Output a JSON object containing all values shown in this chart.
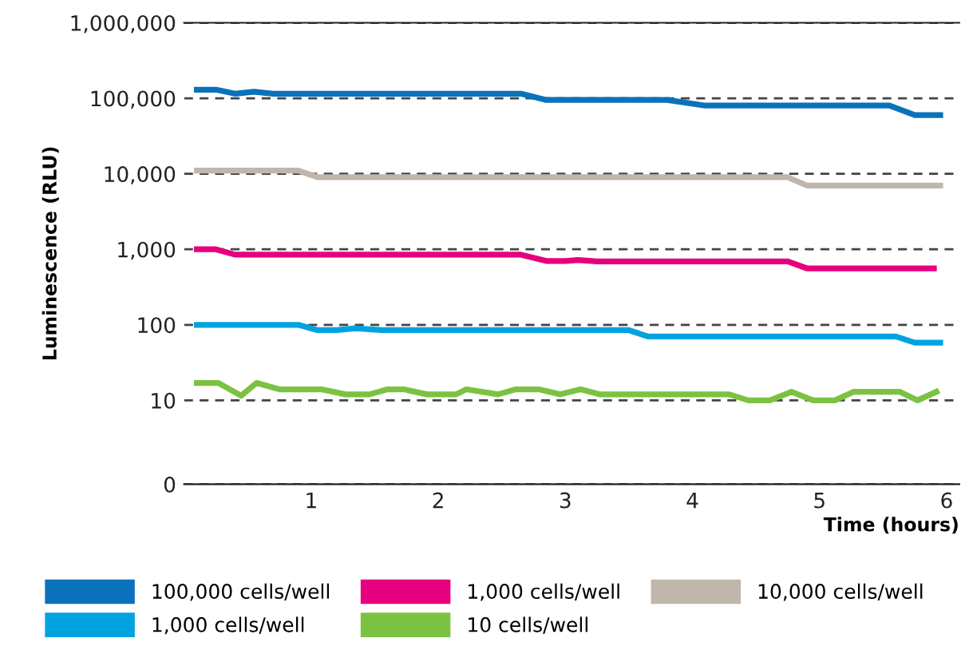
{
  "chart_data": {
    "type": "line",
    "xlabel": "Time (hours)",
    "ylabel": "Luminescence (RLU)",
    "log": "y",
    "xlim": [
      0,
      6.1
    ],
    "xticks": [
      1,
      2,
      3,
      4,
      5,
      6
    ],
    "ylim": [
      0,
      1000000
    ],
    "yticks": [
      0,
      {
        "value": 10,
        "label": "10"
      },
      {
        "value": 100,
        "label": "100"
      },
      {
        "value": 1000,
        "label": "1,000"
      },
      {
        "value": 10000,
        "label": "10,000"
      },
      {
        "value": 100000,
        "label": "100,000"
      },
      {
        "value": 1000000,
        "label": "1,000,000"
      }
    ],
    "grid": "y",
    "legend": "bottom",
    "line_style": "solid",
    "marker": "none",
    "series": [
      {
        "name": "100,000 cells/well",
        "color": "#0a72ba",
        "x": [
          0.1,
          0.25,
          0.4,
          0.55,
          0.7,
          2.65,
          2.85,
          3.8,
          4.1,
          5.55,
          5.75,
          5.95
        ],
        "values": [
          130000,
          130000,
          115000,
          122000,
          115000,
          115000,
          95000,
          95000,
          80000,
          80000,
          60000,
          60000
        ]
      },
      {
        "name": "1,000 cells/well",
        "color": "#00a3e0",
        "x": [
          0.1,
          0.9,
          1.05,
          1.2,
          1.35,
          1.55,
          3.5,
          3.65,
          5.6,
          5.75,
          5.95
        ],
        "values": [
          100,
          100,
          85,
          85,
          90,
          85,
          85,
          70,
          70,
          58,
          58
        ]
      },
      {
        "name": "1,000 cells/well",
        "color": "#e6007e",
        "x": [
          0.1,
          0.25,
          0.4,
          2.65,
          2.85,
          3.0,
          3.1,
          3.25,
          4.75,
          4.9,
          5.9
        ],
        "values": [
          1000,
          1000,
          850,
          850,
          700,
          700,
          720,
          690,
          690,
          560,
          560
        ]
      },
      {
        "name": "10 cells/well",
        "color": "#7cc242",
        "x": [
          0.1,
          0.27,
          0.45,
          0.57,
          0.75,
          1.08,
          1.27,
          1.46,
          1.6,
          1.73,
          1.91,
          2.14,
          2.22,
          2.47,
          2.61,
          2.79,
          2.96,
          3.12,
          3.27,
          4.29,
          4.44,
          4.61,
          4.78,
          4.95,
          5.12,
          5.27,
          5.63,
          5.77,
          5.92
        ],
        "values": [
          17,
          17,
          11.5,
          17,
          14,
          14,
          12,
          12,
          14,
          14,
          12,
          12,
          14,
          12,
          14,
          14,
          12,
          14,
          12,
          12,
          10,
          10,
          13,
          10,
          10,
          13,
          13,
          10,
          13
        ]
      },
      {
        "name": "10,000 cells/well",
        "color": "#bfb6ac",
        "x": [
          0.1,
          0.9,
          1.05,
          4.75,
          4.9,
          5.95
        ],
        "values": [
          11000,
          11000,
          9000,
          9000,
          7000,
          7000
        ]
      }
    ]
  }
}
